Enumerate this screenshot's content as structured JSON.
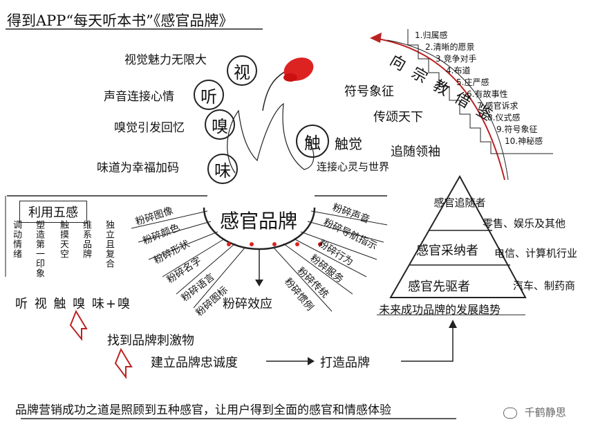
{
  "title": "得到APP“每天听本书”《感官品牌》",
  "senses_left": [
    {
      "phrase": "视觉魅力无限大",
      "char": "视"
    },
    {
      "phrase": "声音连接心情",
      "char": "听"
    },
    {
      "phrase": "嗅觉引发回忆",
      "char": "嗅"
    },
    {
      "phrase": "味道为幸福加码",
      "char": "味"
    }
  ],
  "touch": {
    "char": "触",
    "label": "触觉",
    "sub": "连接心灵与世界"
  },
  "religion": {
    "title": "向宗教借鉴",
    "items": [
      "1.归属感",
      "2.清晰的愿景",
      "3.竞争对手",
      "4.布道",
      "5.庄严感",
      "6.有故事性",
      "7.感官诉求",
      "8.仪式感",
      "9.符号象征",
      "10.神秘感"
    ],
    "side_labels": [
      "符号象征",
      "传颂天下",
      "追随领袖"
    ]
  },
  "center": {
    "title": "感官品牌",
    "bottom": "粉碎效应"
  },
  "smash_left": [
    "粉碎图像",
    "粉碎颜色",
    "粉碎形状",
    "粉碎名字",
    "粉碎语言",
    "粉碎图标"
  ],
  "smash_right": [
    "粉碎声音",
    "粉碎导航指示",
    "粉碎行为",
    "粉碎服务",
    "粉碎传统",
    "粉碎惯例"
  ],
  "use_five": {
    "title": "利用五感",
    "columns": [
      "调动情绪",
      "塑造第一印象",
      "触摸天空",
      "维系品牌",
      "独立且复合"
    ],
    "senses_row": "听 视 触 嗅 味+嗅"
  },
  "flow": {
    "step1": "找到品牌刺激物",
    "step2": "建立品牌忠诚度",
    "step3": "打造品牌"
  },
  "pyramid": {
    "levels": [
      "感官追随者",
      "感官采纳者",
      "感官先驱者"
    ],
    "industries": [
      "零售、娱乐及其他",
      "电信、计算机行业",
      "汽车、制药商"
    ],
    "caption": "未来成功品牌的发展趋势"
  },
  "footer": "品牌营销成功之道是照顾到五种感官，让用户得到全面的感官和情感体验",
  "watermark": "千鹤静思",
  "colors": {
    "accent_red": "#d22222",
    "ink": "#111111"
  }
}
